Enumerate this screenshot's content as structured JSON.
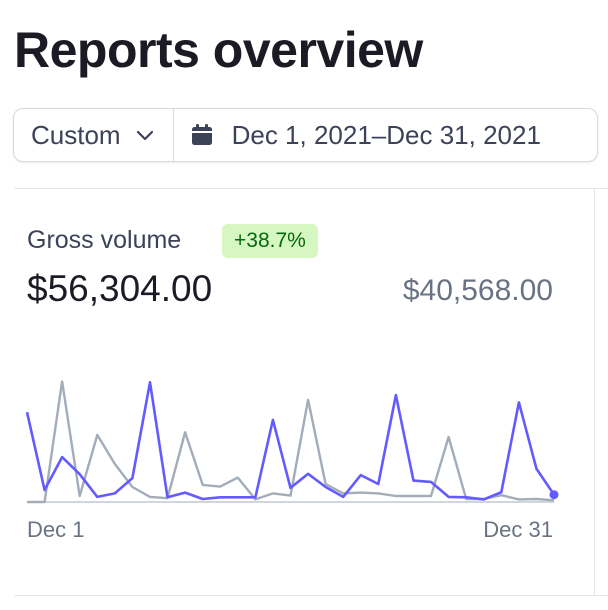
{
  "page": {
    "title": "Reports overview"
  },
  "filters": {
    "range_label": "Custom",
    "date_range": "Dec 1, 2021–Dec 31, 2021"
  },
  "metric": {
    "label": "Gross volume",
    "change": "+38.7%",
    "current_value": "$56,304.00",
    "previous_value": "$40,568.00",
    "x_start": "Dec 1",
    "x_end": "Dec 31"
  },
  "colors": {
    "current_series": "#635bff",
    "previous_series": "#a3acb9",
    "badge_bg": "#d7f7c2",
    "badge_text": "#05690d"
  },
  "chart_data": {
    "type": "line",
    "x": [
      1,
      2,
      3,
      4,
      5,
      6,
      7,
      8,
      9,
      10,
      11,
      12,
      13,
      14,
      15,
      16,
      17,
      18,
      19,
      20,
      21,
      22,
      23,
      24,
      25,
      26,
      27,
      28,
      29,
      30,
      31
    ],
    "series": [
      {
        "values": [
          2100,
          280,
          1050,
          650,
          120,
          200,
          560,
          2800,
          110,
          220,
          70,
          110,
          110,
          110,
          1920,
          330,
          660,
          350,
          120,
          630,
          420,
          2500,
          500,
          470,
          120,
          110,
          60,
          230,
          2330,
          780,
          170
        ]
      },
      {
        "values": [
          0,
          0,
          2820,
          140,
          1570,
          890,
          350,
          120,
          90,
          1630,
          400,
          360,
          570,
          60,
          200,
          150,
          2390,
          420,
          200,
          220,
          200,
          140,
          140,
          140,
          1520,
          70,
          70,
          160,
          60,
          70,
          40
        ]
      }
    ],
    "ylim": [
      0,
      2900
    ],
    "grid": false,
    "legend": "none"
  }
}
